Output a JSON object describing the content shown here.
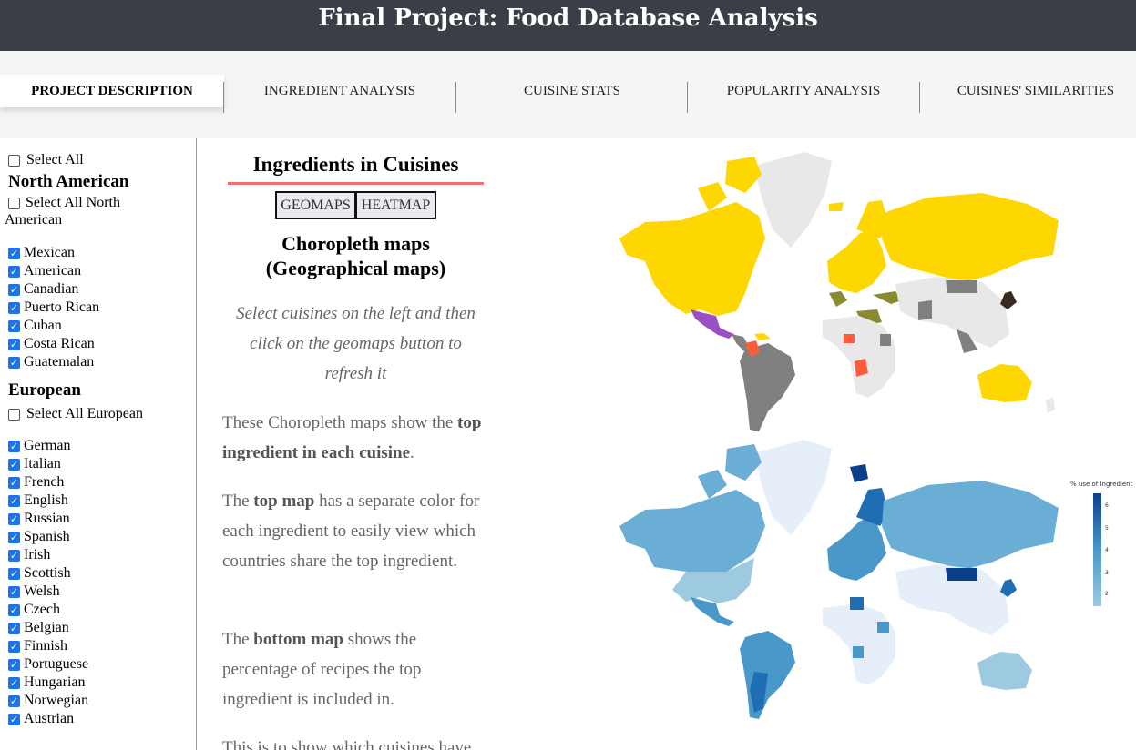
{
  "header": {
    "title": "Final Project: Food Database Analysis"
  },
  "nav": {
    "tabs": [
      {
        "label": "PROJECT DESCRIPTION",
        "active": true
      },
      {
        "label": "INGREDIENT ANALYSIS",
        "active": false
      },
      {
        "label": "CUISINE STATS",
        "active": false
      },
      {
        "label": "POPULARITY ANALYSIS",
        "active": false
      },
      {
        "label": "CUISINES' SIMILARITIES",
        "active": false
      }
    ]
  },
  "sidebar": {
    "select_all": {
      "label": "Select All",
      "checked": false
    },
    "groups": [
      {
        "title": "North American",
        "select_all_label": "Select All North American",
        "select_all_checked": false,
        "items": [
          "Mexican",
          "American",
          "Canadian",
          "Puerto Rican",
          "Cuban",
          "Costa Rican",
          "Guatemalan"
        ]
      },
      {
        "title": "European",
        "select_all_label": "Select All European",
        "select_all_checked": false,
        "items": [
          "German",
          "Italian",
          "French",
          "English",
          "Russian",
          "Spanish",
          "Irish",
          "Scottish",
          "Welsh",
          "Czech",
          "Belgian",
          "Finnish",
          "Portuguese",
          "Hungarian",
          "Norwegian",
          "Austrian"
        ]
      }
    ]
  },
  "main": {
    "title": "Ingredients in Cuisines",
    "buttons": {
      "geomaps": "GEOMAPS",
      "heatmap": "HEATMAP"
    },
    "subtitle_line1": "Choropleth maps",
    "subtitle_line2": "(Geographical maps)",
    "instruction": "Select cuisines on the left and then click on the geomaps button to refresh it",
    "p1_a": "These Choropleth maps show the ",
    "p1_b": "top ingredient in each cuisine",
    "p1_c": ".",
    "p2_a": "The ",
    "p2_b": "top map",
    "p2_c": " has a separate color for each ingredient to easily view which countries share the top ingredient.",
    "p3_a": "The ",
    "p3_b": "bottom map",
    "p3_c": " shows the percentage of recipes the top ingredient is included in.",
    "p4": "This is to show which cuisines have"
  },
  "legend": {
    "title": "% use of Ingredient",
    "ticks": [
      "6",
      "5",
      "4",
      "3",
      "2"
    ]
  },
  "colors": {
    "header_bg": "#3a3f47",
    "nav_bg": "#f4f5f7",
    "accent_underline": "#f07070",
    "checkbox": "#1a73e8",
    "map_yellow": "#ffd700",
    "map_gray": "#808080",
    "map_olive": "#8a8a2e",
    "map_purple": "#9c4fc4",
    "map_red": "#ff5a3c",
    "map_light": "#e8e8e8",
    "blue_scale_low": "#e6eff9",
    "blue_scale_high": "#0b3f8a"
  }
}
